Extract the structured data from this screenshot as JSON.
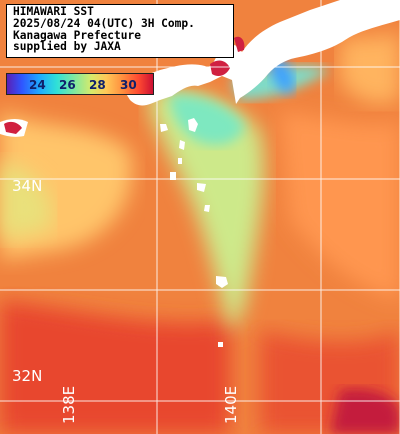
{
  "title": {
    "line1": "HIMAWARI SST",
    "line2": "2025/08/24 04(UTC) 3H Comp.",
    "line3": "Kanagawa Prefecture",
    "line4": "supplied by JAXA"
  },
  "colorbar": {
    "labels": [
      "24",
      "26",
      "28",
      "30"
    ]
  },
  "grid_labels": {
    "lat_34": "34N",
    "lat_32": "32N",
    "lon_138": "138E",
    "lon_140": "140E"
  },
  "colors": {
    "warm_sea": "#f07a3a",
    "hot_sea": "#e8452e",
    "mild_sea": "#ffb060",
    "cool_water": "#a8e6a0",
    "cold_water": "#56d9e0",
    "land": "#ffffff",
    "grid": "#ffffff"
  }
}
